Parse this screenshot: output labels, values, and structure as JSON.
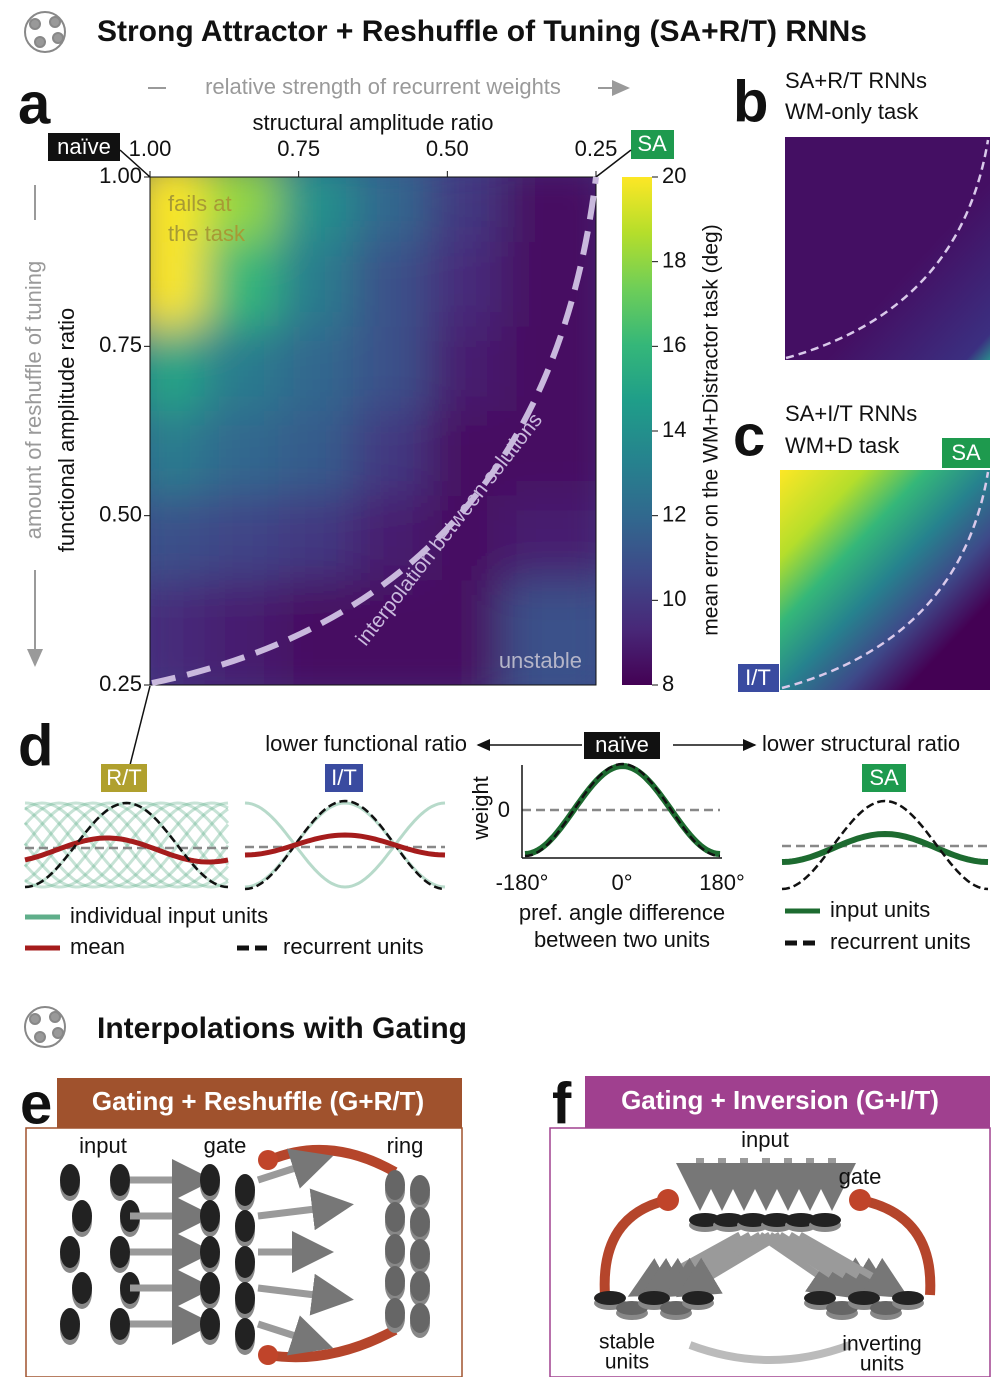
{
  "header": {
    "title": "Strong Attractor + Reshuffle of Tuning (SA+R/T) RNNs"
  },
  "panel_a": {
    "label": "a",
    "top_arrow_label": "relative strength of recurrent weights",
    "left_arrow_label": "amount of reshuffle of tuning",
    "x_label": "structural amplitude ratio",
    "y_label": "functional amplitude ratio",
    "xlim": [
      1.0,
      0.25
    ],
    "ylim": [
      1.0,
      0.25
    ],
    "xticks": [
      {
        "value": 1.0,
        "label": "1.00"
      },
      {
        "value": 0.75,
        "label": "0.75"
      },
      {
        "value": 0.5,
        "label": "0.50"
      },
      {
        "value": 0.25,
        "label": "0.25"
      }
    ],
    "yticks": [
      {
        "value": 1.0,
        "label": "1.00"
      },
      {
        "value": 0.75,
        "label": "0.75"
      },
      {
        "value": 0.5,
        "label": "0.50"
      },
      {
        "value": 0.25,
        "label": "0.25"
      }
    ],
    "heatmap": {
      "values": [
        [
          20,
          18,
          14,
          12,
          10,
          8.5
        ],
        [
          20,
          16,
          13,
          11,
          9.5,
          8.5
        ],
        [
          15,
          13,
          12,
          11,
          9,
          8.5
        ],
        [
          13,
          12,
          11.5,
          10,
          8.5,
          8.5
        ],
        [
          11,
          10.5,
          10,
          9,
          8.5,
          9
        ],
        [
          9.5,
          9,
          8.5,
          8.5,
          8.5,
          11
        ]
      ]
    },
    "colorbar_label": "mean error on the WM+Distractor task (deg)",
    "colorbar_lim": [
      8,
      20
    ],
    "colorbar_ticks": [
      8,
      10,
      12,
      14,
      16,
      18,
      20
    ],
    "corner_naive": "naïve",
    "corner_sa": "SA",
    "annotation_fails": [
      "fails at",
      "the task"
    ],
    "annotation_interpolation": "interpolation between solutions",
    "annotation_unstable": "unstable"
  },
  "panel_b": {
    "label": "b",
    "lines": [
      "SA+R/T RNNs",
      "WM-only task"
    ]
  },
  "panel_c": {
    "label": "c",
    "lines": [
      "SA+I/T RNNs",
      "WM+D task"
    ],
    "corner_sa": "SA",
    "corner_it": "I/T"
  },
  "panel_d": {
    "label": "d",
    "left_arrow": "lower functional ratio",
    "center_tag": "naïve",
    "right_arrow": "lower structural ratio",
    "tags": [
      "R/T",
      "I/T",
      "SA"
    ],
    "y_label": "weight",
    "y_tick": "0",
    "x_ticks": [
      "-180°",
      "0°",
      "180°"
    ],
    "x_label": [
      "pref. angle difference",
      "between two units"
    ],
    "legend_left": [
      "individual input units",
      "mean",
      "recurrent units"
    ],
    "legend_right": [
      "input units",
      "recurrent units"
    ]
  },
  "section2": {
    "title": "Interpolations with Gating"
  },
  "panel_e": {
    "label": "e",
    "title": "Gating + Reshuffle (G+R/T)",
    "labels": [
      "input",
      "gate",
      "ring"
    ]
  },
  "panel_f": {
    "label": "f",
    "title": "Gating + Inversion (G+I/T)",
    "labels": [
      "input",
      "gate"
    ],
    "stable": [
      "stable",
      "units"
    ],
    "inverting": [
      "inverting",
      "units"
    ]
  }
}
